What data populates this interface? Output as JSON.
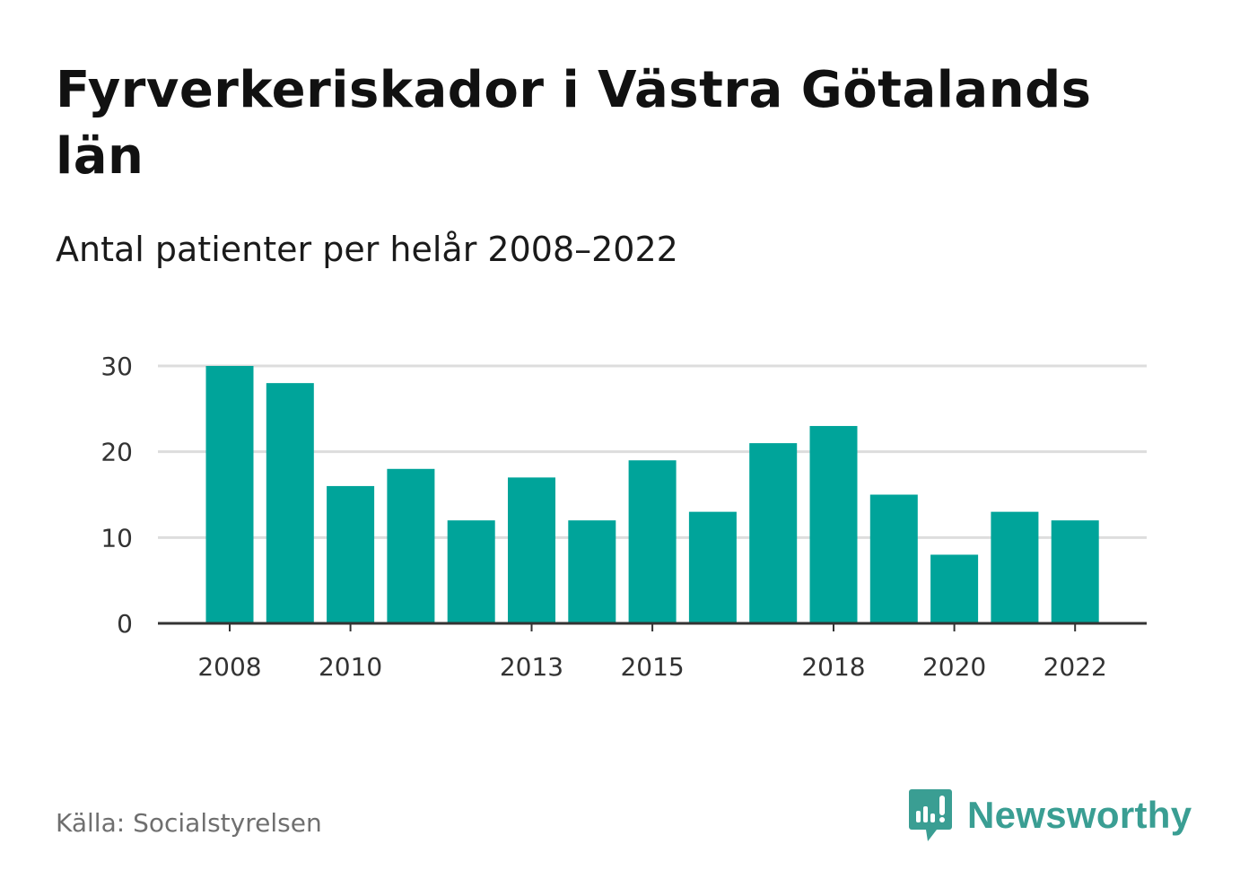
{
  "title": "Fyrverkeriskador i Västra Götalands län",
  "subtitle": "Antal patienter per helår 2008–2022",
  "source": "Källa: Socialstyrelsen",
  "brand": {
    "name": "Newsworthy",
    "icon": "newsworthy-logo-icon",
    "color": "#3a9e93"
  },
  "chart_data": {
    "type": "bar",
    "categories": [
      "2008",
      "2009",
      "2010",
      "2011",
      "2012",
      "2013",
      "2014",
      "2015",
      "2016",
      "2017",
      "2018",
      "2019",
      "2020",
      "2021",
      "2022"
    ],
    "values": [
      30,
      28,
      16,
      18,
      12,
      17,
      12,
      19,
      13,
      21,
      23,
      15,
      8,
      13,
      12
    ],
    "x_tick_labels": [
      "2008",
      "2010",
      "2013",
      "2015",
      "2018",
      "2020",
      "2022"
    ],
    "y_ticks": [
      0,
      10,
      20,
      30
    ],
    "ylim": [
      0,
      30
    ],
    "bar_color": "#00a49a",
    "grid": true,
    "xlabel": "",
    "ylabel": ""
  }
}
